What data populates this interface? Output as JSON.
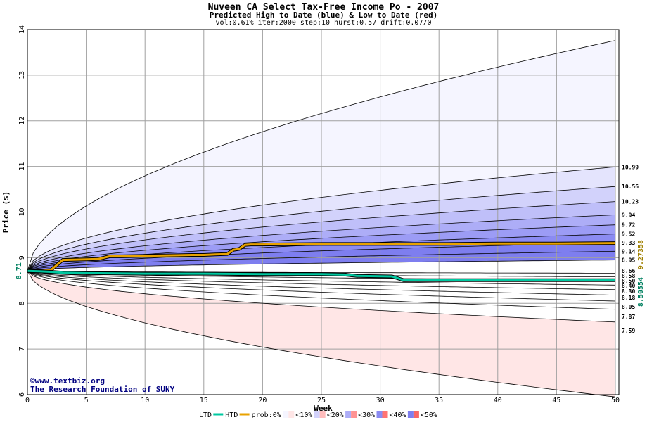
{
  "title": "Nuveen CA Select Tax-Free Income Po - 2007",
  "subtitle": "Predicted High to Date (blue) &  Low to Date (red)",
  "params": "vol:0.61% iter:2000 step:10 hurst:0.57 drift:0.07/0",
  "credits": [
    "©www.textbiz.org",
    "The Research Foundation of SUNY"
  ],
  "chart_data": {
    "type": "area",
    "xlabel": "Week",
    "ylabel": "Price ($)",
    "xlim": [
      0,
      50.3
    ],
    "ylim": [
      6,
      14
    ],
    "xticks": [
      0,
      5,
      10,
      15,
      20,
      25,
      30,
      35,
      40,
      45,
      50
    ],
    "yticks": [
      6,
      7,
      8,
      9,
      10,
      11,
      12,
      13,
      14
    ],
    "grid": true,
    "start_price": 8.71,
    "start_label": "8.71",
    "high_band_labels": [
      "10.99",
      "10.56",
      "10.23",
      "9.94",
      "9.72",
      "9.52",
      "9.33",
      "9.14",
      "8.95"
    ],
    "high_band_values": [
      10.99,
      10.56,
      10.23,
      9.94,
      9.72,
      9.52,
      9.33,
      9.14,
      8.95
    ],
    "low_band_labels": [
      "8.66",
      "8.58",
      "8.50",
      "8.40",
      "8.30",
      "8.18",
      "8.05",
      "7.87",
      "7.59"
    ],
    "low_band_values": [
      8.66,
      8.58,
      8.5,
      8.4,
      8.3,
      8.18,
      8.05,
      7.87,
      7.59
    ],
    "outer_high_end": 13.76,
    "outer_low_end": 5.95,
    "htd_label": "9.27358",
    "htd_series": {
      "x": [
        0,
        1,
        2,
        3,
        6,
        7,
        8,
        10,
        12,
        14,
        15,
        16,
        17,
        17.5,
        18,
        18.5,
        19,
        20,
        25,
        30,
        35,
        40,
        45,
        50
      ],
      "y": [
        8.71,
        8.71,
        8.73,
        8.95,
        8.97,
        9.03,
        9.03,
        9.04,
        9.05,
        9.06,
        9.06,
        9.07,
        9.08,
        9.17,
        9.19,
        9.28,
        9.29,
        9.29,
        9.3,
        9.3,
        9.3,
        9.31,
        9.31,
        9.32
      ]
    },
    "ltd_label": "8.50554",
    "ltd_series": {
      "x": [
        0,
        1,
        2,
        3,
        5,
        10,
        15,
        20,
        25,
        27,
        28,
        31,
        32,
        35,
        40,
        45,
        50
      ],
      "y": [
        8.71,
        8.7,
        8.69,
        8.67,
        8.66,
        8.65,
        8.65,
        8.64,
        8.64,
        8.63,
        8.6,
        8.59,
        8.51,
        8.51,
        8.51,
        8.51,
        8.51
      ]
    },
    "legend": {
      "position": "bottom",
      "ltd": "LTD",
      "htd": "HTD",
      "prob_prefix": "prob:0%",
      "bins": [
        "<10%",
        "<20%",
        "<30%",
        "<40%",
        "<50%"
      ]
    },
    "colors": {
      "htd": "#e8a200",
      "ltd": "#00c8a0",
      "htd_label": "#a08000",
      "ltd_label": "#008060",
      "blue_bands": [
        "#f5f5ff",
        "#e4e4fd",
        "#d2d2fb",
        "#bfbff9",
        "#adadf7",
        "#9c9cf5",
        "#8b8bf2",
        "#7e7eef"
      ],
      "red_bands": [
        "#ffe6e6",
        "#ffd0d0",
        "#ffbcbc",
        "#ffa7a7",
        "#ff9393",
        "#ff8282",
        "#ff7373",
        "#f86666"
      ]
    }
  }
}
